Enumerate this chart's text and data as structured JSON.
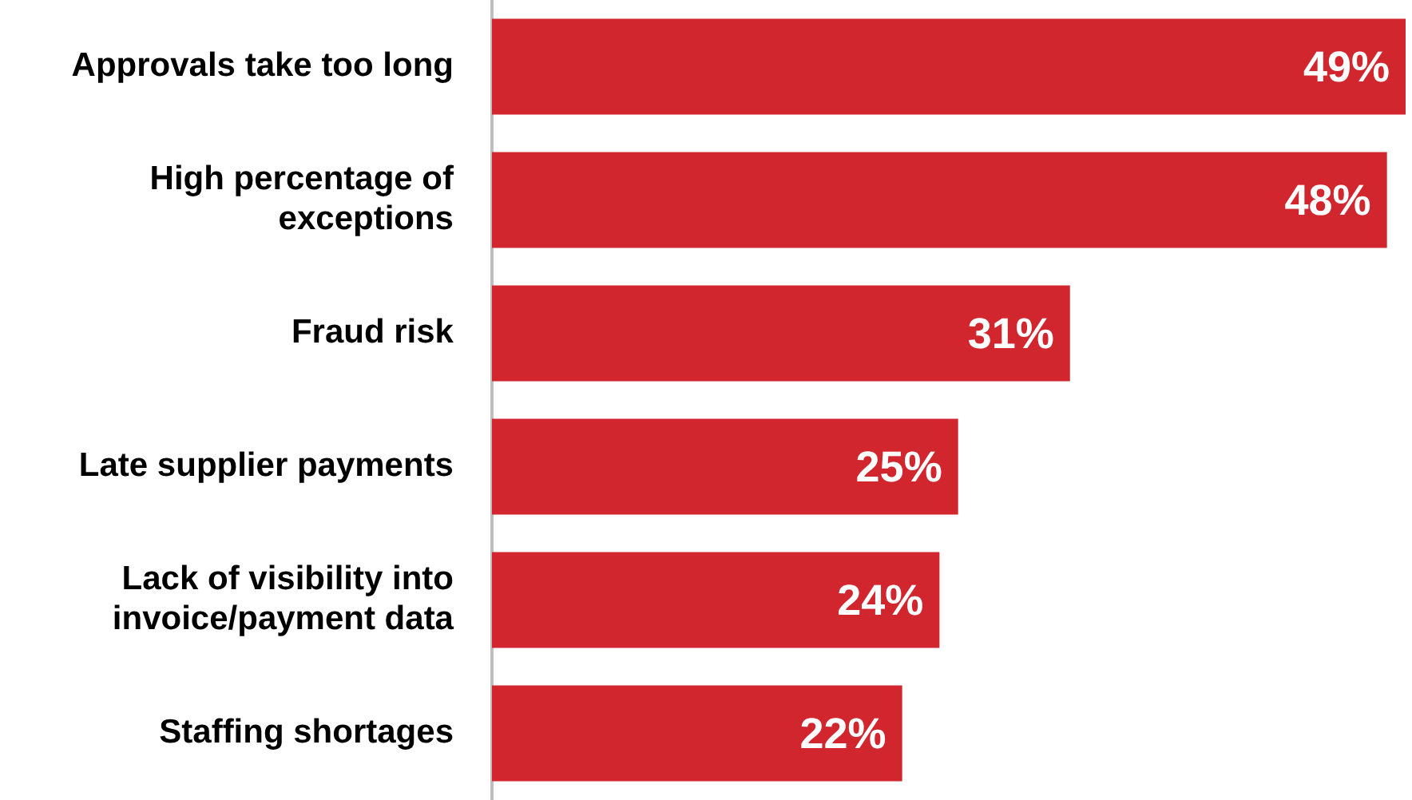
{
  "chart_data": {
    "type": "bar",
    "orientation": "horizontal",
    "categories": [
      "Approvals take too long",
      "High percentage of exceptions",
      "Fraud risk",
      "Late supplier payments",
      "Lack of visibility into invoice/payment data",
      "Staffing shortages"
    ],
    "values": [
      49,
      48,
      31,
      25,
      24,
      22
    ],
    "value_labels": [
      "49%",
      "48%",
      "31%",
      "25%",
      "24%",
      "22%"
    ],
    "color": "#d2262f",
    "legend": false
  }
}
